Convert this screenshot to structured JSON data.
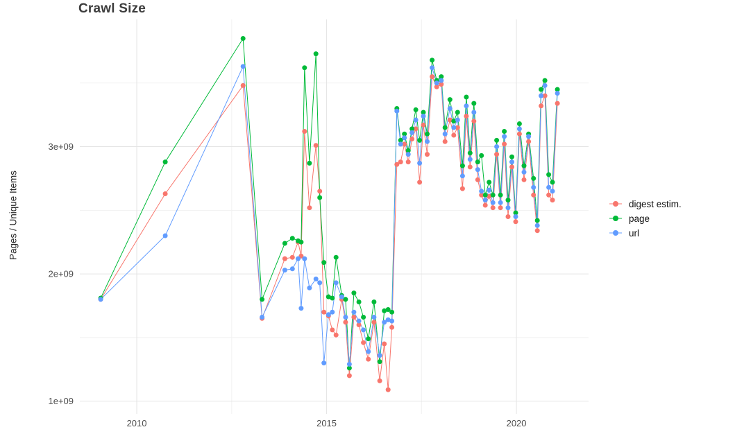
{
  "chart_data": {
    "type": "line",
    "title": "Crawl Size",
    "ylabel": "Pages / Unique Items",
    "xlabel": "",
    "grid": true,
    "legend_position": "right",
    "grid_color_major": "#e4e4e4",
    "grid_color_minor": "#f1f1f1",
    "xlim": [
      2008.5,
      2021.9
    ],
    "ylim_e9": [
      0.9,
      4.0
    ],
    "x_ticks": {
      "values": [
        2010,
        2015,
        2020
      ],
      "labels": [
        "2010",
        "2015",
        "2020"
      ],
      "minor": [
        2012.5,
        2017.5
      ]
    },
    "y_ticks": {
      "values": [
        1,
        2,
        3
      ],
      "labels": [
        "1e+09",
        "2e+09",
        "3e+09"
      ],
      "minor": [
        1.5,
        2.5,
        3.5
      ]
    },
    "y_unit_multiplier": 1000000000,
    "x": [
      2009.05,
      2010.75,
      2012.8,
      2013.3,
      2013.9,
      2014.1,
      2014.25,
      2014.33,
      2014.42,
      2014.55,
      2014.72,
      2014.82,
      2014.93,
      2015.05,
      2015.15,
      2015.25,
      2015.4,
      2015.5,
      2015.6,
      2015.72,
      2015.85,
      2015.97,
      2016.1,
      2016.25,
      2016.4,
      2016.52,
      2016.62,
      2016.72,
      2016.85,
      2016.95,
      2017.05,
      2017.15,
      2017.25,
      2017.35,
      2017.45,
      2017.55,
      2017.65,
      2017.78,
      2017.9,
      2018.02,
      2018.12,
      2018.25,
      2018.35,
      2018.45,
      2018.58,
      2018.68,
      2018.78,
      2018.88,
      2018.98,
      2019.08,
      2019.18,
      2019.28,
      2019.38,
      2019.48,
      2019.58,
      2019.68,
      2019.78,
      2019.88,
      2019.98,
      2020.08,
      2020.2,
      2020.32,
      2020.45,
      2020.55,
      2020.65,
      2020.75,
      2020.85,
      2020.95,
      2021.08
    ],
    "series": [
      {
        "name": "digest estim.",
        "color": "#F8766D",
        "values": [
          1.8,
          2.63,
          3.48,
          1.65,
          2.12,
          2.13,
          2.25,
          2.14,
          3.12,
          2.52,
          3.01,
          2.65,
          1.7,
          1.67,
          1.56,
          1.52,
          1.8,
          1.62,
          1.2,
          1.66,
          1.6,
          1.46,
          1.33,
          1.62,
          1.16,
          1.45,
          1.09,
          1.58,
          2.86,
          2.88,
          3.02,
          2.88,
          3.06,
          3.14,
          2.72,
          3.17,
          2.94,
          3.55,
          3.47,
          3.49,
          3.04,
          3.21,
          3.09,
          3.15,
          2.67,
          3.24,
          2.84,
          3.2,
          2.74,
          2.62,
          2.54,
          2.61,
          2.52,
          2.94,
          2.52,
          3.02,
          2.45,
          2.84,
          2.41,
          3.1,
          2.74,
          3.04,
          2.62,
          2.34,
          3.32,
          3.4,
          2.62,
          2.58,
          3.34
        ]
      },
      {
        "name": "page",
        "color": "#00BA38",
        "values": [
          1.81,
          2.88,
          3.85,
          1.8,
          2.24,
          2.28,
          2.26,
          2.25,
          3.62,
          2.87,
          3.73,
          2.6,
          2.09,
          1.82,
          1.81,
          2.13,
          1.83,
          1.8,
          1.26,
          1.85,
          1.78,
          1.66,
          1.49,
          1.78,
          1.31,
          1.71,
          1.72,
          1.7,
          3.3,
          3.05,
          3.1,
          2.97,
          3.14,
          3.29,
          3.05,
          3.27,
          3.1,
          3.68,
          3.52,
          3.55,
          3.15,
          3.37,
          3.2,
          3.27,
          2.85,
          3.39,
          2.95,
          3.34,
          2.88,
          2.93,
          2.62,
          2.72,
          2.62,
          3.05,
          2.62,
          3.12,
          2.58,
          2.92,
          2.48,
          3.18,
          2.85,
          3.1,
          2.75,
          2.42,
          3.45,
          3.52,
          2.78,
          2.72,
          3.45
        ]
      },
      {
        "name": "url",
        "color": "#619CFF",
        "values": [
          1.8,
          2.3,
          3.63,
          1.66,
          2.03,
          2.04,
          2.12,
          1.73,
          2.12,
          1.89,
          1.96,
          1.93,
          1.3,
          1.68,
          1.7,
          1.93,
          1.82,
          1.66,
          1.29,
          1.7,
          1.63,
          1.56,
          1.39,
          1.66,
          1.36,
          1.62,
          1.64,
          1.63,
          3.28,
          3.02,
          3.07,
          2.94,
          3.11,
          3.21,
          2.87,
          3.24,
          3.04,
          3.62,
          3.5,
          3.52,
          3.1,
          3.3,
          3.15,
          3.21,
          2.77,
          3.32,
          2.9,
          3.27,
          2.82,
          2.65,
          2.58,
          2.66,
          2.56,
          3.0,
          2.56,
          3.08,
          2.52,
          2.88,
          2.45,
          3.14,
          2.8,
          3.08,
          2.68,
          2.38,
          3.4,
          3.48,
          2.68,
          2.65,
          3.42
        ]
      }
    ]
  }
}
